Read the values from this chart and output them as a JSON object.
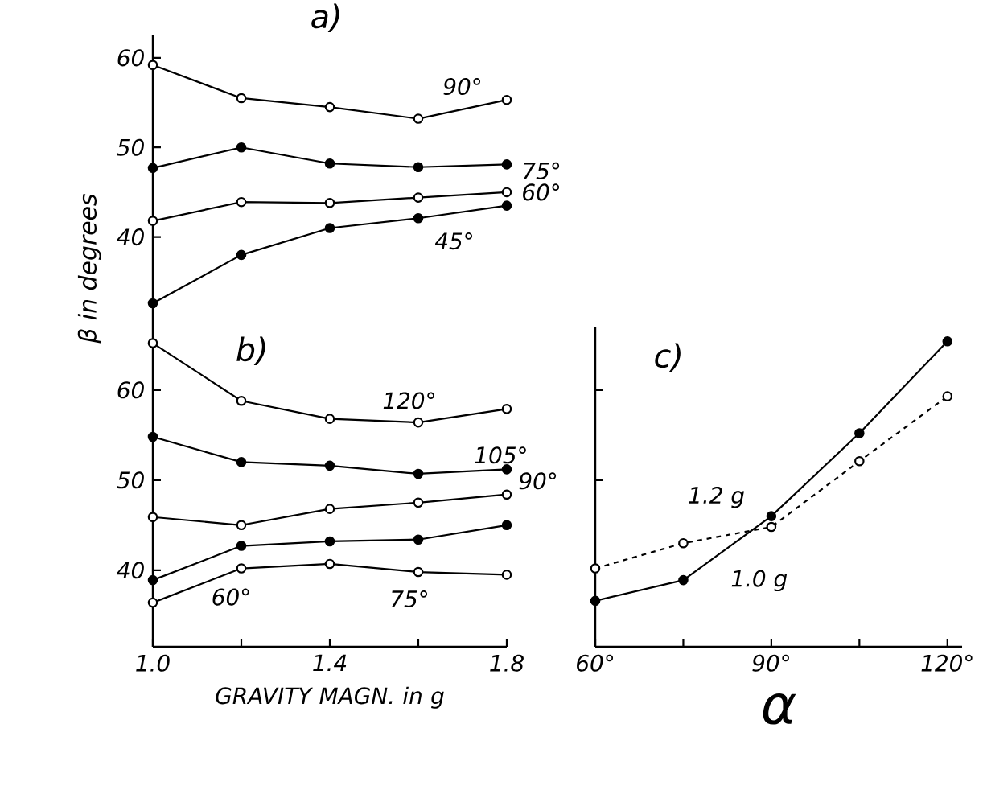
{
  "chart_data": [
    {
      "type": "line",
      "title": "a)",
      "ylabel": "β in degrees",
      "x": [
        1.0,
        1.2,
        1.4,
        1.6,
        1.8
      ],
      "xlim": [
        1.0,
        1.8
      ],
      "ylim": [
        30,
        62.5
      ],
      "yticks": [
        40,
        50,
        60
      ],
      "tick_labels": "y",
      "series": [
        {
          "color": "#000000",
          "marker": "circle_open",
          "values": [
            59.2,
            55.5,
            54.5,
            53.2,
            55.3
          ]
        },
        {
          "color": "#000000",
          "marker": "circle",
          "values": [
            47.7,
            50,
            48.2,
            47.8,
            48.1
          ]
        },
        {
          "color": "#000000",
          "marker": "circle_open",
          "values": [
            41.8,
            43.9,
            43.8,
            44.4,
            45
          ]
        },
        {
          "color": "#000000",
          "marker": "circle",
          "values": [
            32.6,
            38,
            41,
            42.1,
            43.5
          ]
        }
      ],
      "annotations": [
        {
          "text": "90°",
          "x": 1.7,
          "y": 54.2
        },
        {
          "text": "75°",
          "x": 1.8,
          "y": 48.1
        },
        {
          "text": "60°",
          "x": 1.8,
          "y": 45
        },
        {
          "text": "45°",
          "x": 1.66,
          "y": 42.5
        }
      ]
    },
    {
      "type": "line",
      "title": "b)",
      "xlabel": "GRAVITY MAGN. in g",
      "x": [
        1.0,
        1.2,
        1.4,
        1.6,
        1.8
      ],
      "xlim": [
        1.0,
        1.8
      ],
      "ylim": [
        31.5,
        67
      ],
      "yticks": [
        40,
        50,
        60
      ],
      "xticks": [
        {
          "value": 1.0,
          "label": "1.0"
        },
        {
          "value": 1.2,
          "label": null
        },
        {
          "value": 1.4,
          "label": "1.4"
        },
        {
          "value": 1.6,
          "label": null
        },
        {
          "value": 1.8,
          "label": "1.8"
        }
      ],
      "series": [
        {
          "color": "#000000",
          "marker": "circle_open",
          "values": [
            65.2,
            58.8,
            56.8,
            56.4,
            57.9
          ]
        },
        {
          "color": "#000000",
          "marker": "circle",
          "values": [
            54.8,
            52,
            51.6,
            50.7,
            51.2
          ]
        },
        {
          "color": "#000000",
          "marker": "circle_open",
          "values": [
            45.9,
            45,
            46.8,
            47.5,
            48.4
          ]
        },
        {
          "color": "#000000",
          "marker": "circle",
          "values": [
            38.9,
            42.7,
            43.2,
            43.4,
            45
          ]
        },
        {
          "color": "#000000",
          "marker": "circle_open",
          "values": [
            36.4,
            40.2,
            40.7,
            39.8,
            39.5
          ]
        }
      ],
      "annotations": [
        {
          "text": "120°",
          "x": 1.5,
          "y": 56.6
        },
        {
          "text": "105°",
          "x": 1.7,
          "y": 50.9
        },
        {
          "text": "90°",
          "x": 1.8,
          "y": 48.4
        },
        {
          "text": "75°",
          "x": 1.58,
          "y": 43.3
        },
        {
          "text": "60°",
          "x": 1.17,
          "y": 39.6
        }
      ]
    },
    {
      "type": "line",
      "title": "c)",
      "xlabel": "α",
      "x": [
        60,
        75,
        90,
        105,
        120
      ],
      "xlim": [
        60,
        122.5
      ],
      "ylim": [
        31.5,
        67
      ],
      "tick_labels": "x",
      "yticks": [
        {
          "value": 50,
          "label": null
        },
        {
          "value": 60,
          "label": null
        }
      ],
      "xticks": [
        {
          "value": 60,
          "label": "60°"
        },
        {
          "value": 75,
          "label": null
        },
        {
          "value": 90,
          "label": "90°"
        },
        {
          "value": 105,
          "label": null
        },
        {
          "value": 120,
          "label": "120°"
        }
      ],
      "series": [
        {
          "color": "#000000",
          "marker": "circle",
          "line_style": "solid",
          "values": [
            36.6,
            38.9,
            46,
            55.2,
            65.4
          ]
        },
        {
          "color": "#000000",
          "marker": "circle_open",
          "line_style": "dashed",
          "values": [
            40.2,
            43,
            44.8,
            52.1,
            59.3
          ]
        }
      ],
      "annotations": [
        {
          "text": "1.0 g",
          "x": 80,
          "y": 41.3
        },
        {
          "text": "1.2 g",
          "x": 79,
          "y": 44.2
        }
      ]
    }
  ]
}
